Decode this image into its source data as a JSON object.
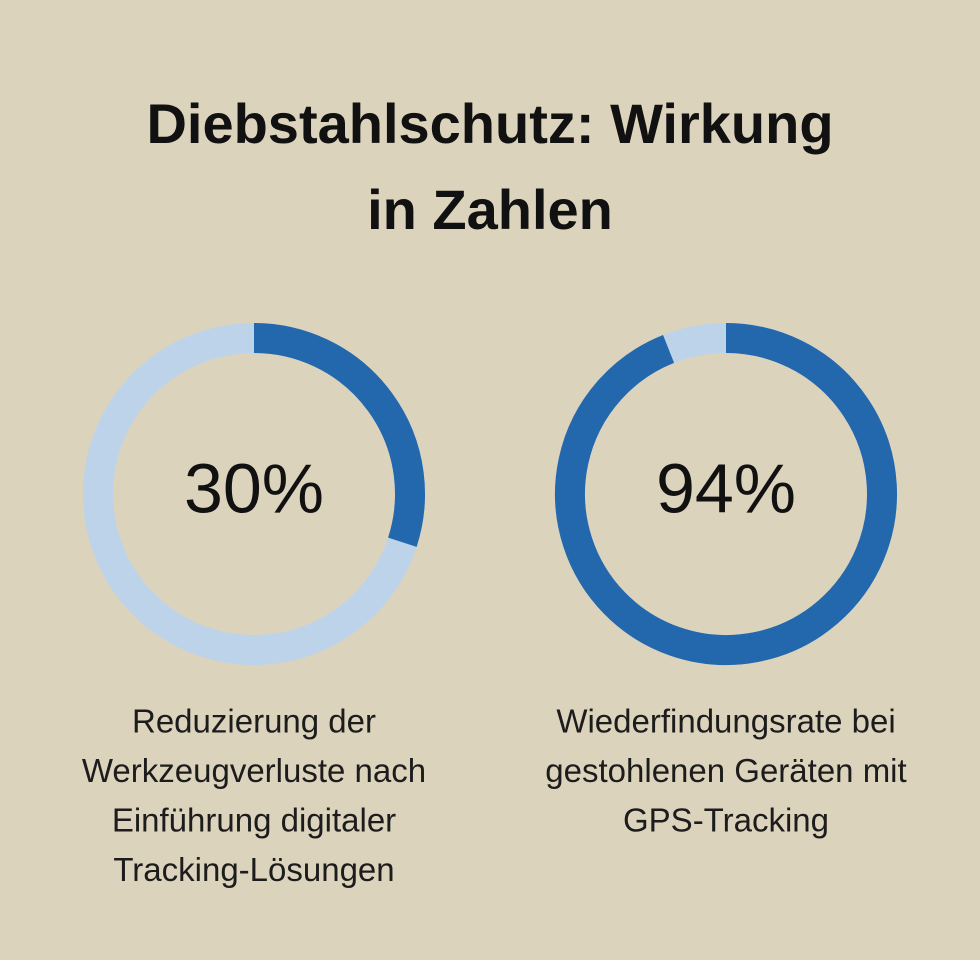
{
  "title": [
    "Diebstahlschutz: Wirkung",
    "in Zahlen"
  ],
  "chart_data": [
    {
      "type": "donut",
      "values": [
        30
      ],
      "value_labels": [
        "30%"
      ],
      "color": "#2367ad",
      "track_color": "#bdd3e9",
      "caption": [
        "Reduzierung der",
        "Werkzeugverluste nach",
        "Einführung digitaler",
        "Tracking-Lösungen"
      ]
    },
    {
      "type": "donut",
      "values": [
        94
      ],
      "value_labels": [
        "94%"
      ],
      "color": "#2367ad",
      "track_color": "#bdd3e9",
      "caption": [
        "Wiederfindungsrate bei",
        "gestohlenen Geräten mit",
        "GPS-Tracking"
      ]
    }
  ]
}
